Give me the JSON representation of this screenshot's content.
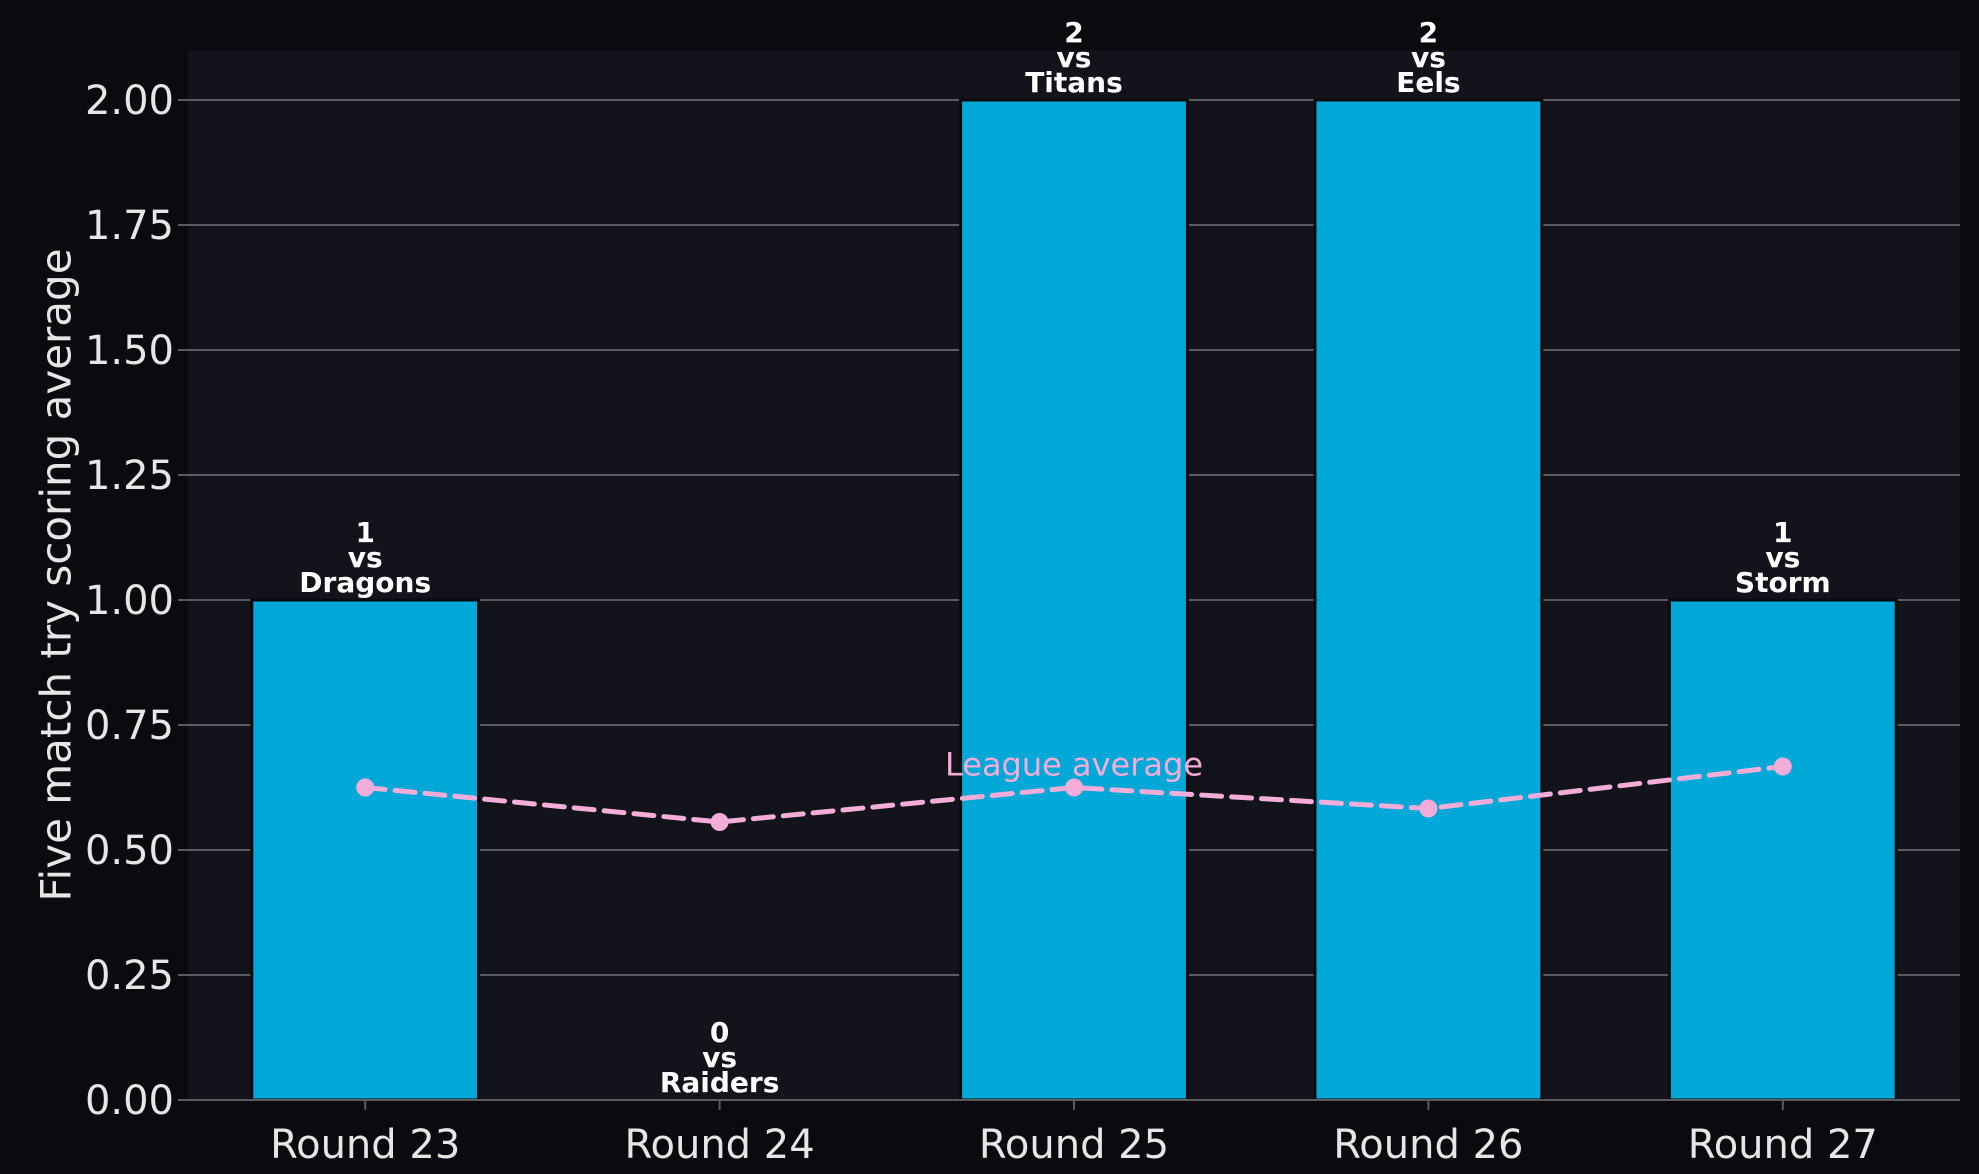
{
  "chart_data": {
    "type": "bar",
    "categories": [
      "Round 23",
      "Round 24",
      "Round 25",
      "Round 26",
      "Round 27"
    ],
    "values": [
      1,
      0,
      2,
      2,
      1
    ],
    "bar_labels": [
      [
        "1",
        "vs",
        "Dragons"
      ],
      [
        "0",
        "vs",
        "Raiders"
      ],
      [
        "2",
        "vs",
        "Titans"
      ],
      [
        "2",
        "vs",
        "Eels"
      ],
      [
        "1",
        "vs",
        "Storm"
      ]
    ],
    "line_series": {
      "name": "League average",
      "values": [
        0.625,
        0.556,
        0.625,
        0.583,
        0.667
      ],
      "style": "dashed"
    },
    "title": "",
    "xlabel": "",
    "ylabel": "Five match try scoring average",
    "ylim": [
      0,
      2.1
    ],
    "yticks": [
      "0.00",
      "0.25",
      "0.50",
      "0.75",
      "1.00",
      "1.25",
      "1.50",
      "1.75",
      "2.00"
    ],
    "grid": "horizontal",
    "colors": {
      "figure_background": "#0b0b0f",
      "plot_background": "#13141b",
      "bar": "#00a8d8",
      "line": "#f4acd9",
      "grid": "#5a5a5f",
      "text": "#e6e6e6"
    }
  }
}
